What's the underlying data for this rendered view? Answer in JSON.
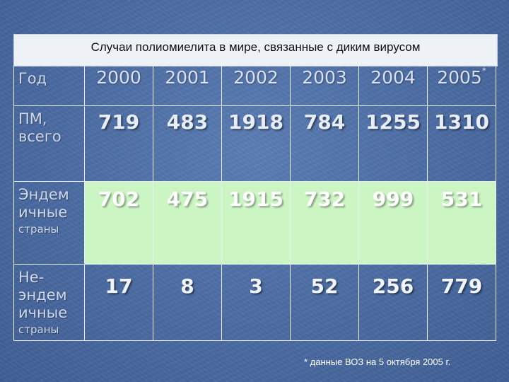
{
  "title": "Случаи полиомиелита в мире, связанные с диким вирусом",
  "table": {
    "year_label": "Год",
    "years": [
      "2000",
      "2001",
      "2002",
      "2003",
      "2004",
      "2005"
    ],
    "year_marker": "*",
    "rows": [
      {
        "label": "ПМ, всего",
        "label_small": "",
        "values": [
          "719",
          "483",
          "1918",
          "784",
          "1255",
          "1310"
        ]
      },
      {
        "label": "Эндем ичные",
        "label_small": "страны",
        "values": [
          "702",
          "475",
          "1915",
          "732",
          "999",
          "531"
        ]
      },
      {
        "label": "Не-эндем ичные",
        "label_small": "страны",
        "values": [
          "17",
          "8",
          "3",
          "52",
          "256",
          "779"
        ]
      }
    ],
    "highlight_color": "#ccf5c4"
  },
  "footnote": "* данные ВОЗ на 5 октября 2005 г."
}
